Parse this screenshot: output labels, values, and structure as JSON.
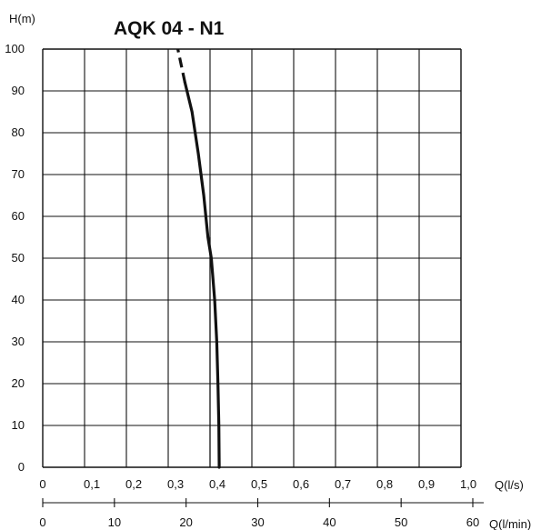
{
  "chart_data": {
    "type": "line",
    "title": "AQK 04 - N1",
    "ylabel": "H(m)",
    "xlabel": "Q(l/s)",
    "x2label": "Q(l/min)",
    "xlim": [
      0,
      1.0
    ],
    "ylim": [
      0,
      100
    ],
    "x2lim": [
      0,
      60
    ],
    "grid": true,
    "x_ticks": [
      "0",
      "0,1",
      "0,2",
      "0,3",
      "0,4",
      "0,5",
      "0,6",
      "0,7",
      "0,8",
      "0,9",
      "1,0"
    ],
    "y_ticks": [
      "0",
      "10",
      "20",
      "30",
      "40",
      "50",
      "60",
      "70",
      "80",
      "90",
      "100"
    ],
    "x2_ticks": [
      "0",
      "10",
      "20",
      "30",
      "40",
      "50",
      "60"
    ],
    "series": [
      {
        "x": [
          0.422,
          0.421,
          0.419,
          0.416,
          0.411,
          0.403,
          0.395,
          0.385,
          0.372,
          0.357,
          0.34,
          0.323
        ],
        "y": [
          0,
          10,
          20,
          30,
          40,
          50,
          55,
          65,
          75,
          85,
          92,
          100
        ],
        "dashed_from_y": 92
      }
    ],
    "reference_line_x": 0.4,
    "colors": {
      "curve": "#111111",
      "grid": "#111111"
    }
  }
}
